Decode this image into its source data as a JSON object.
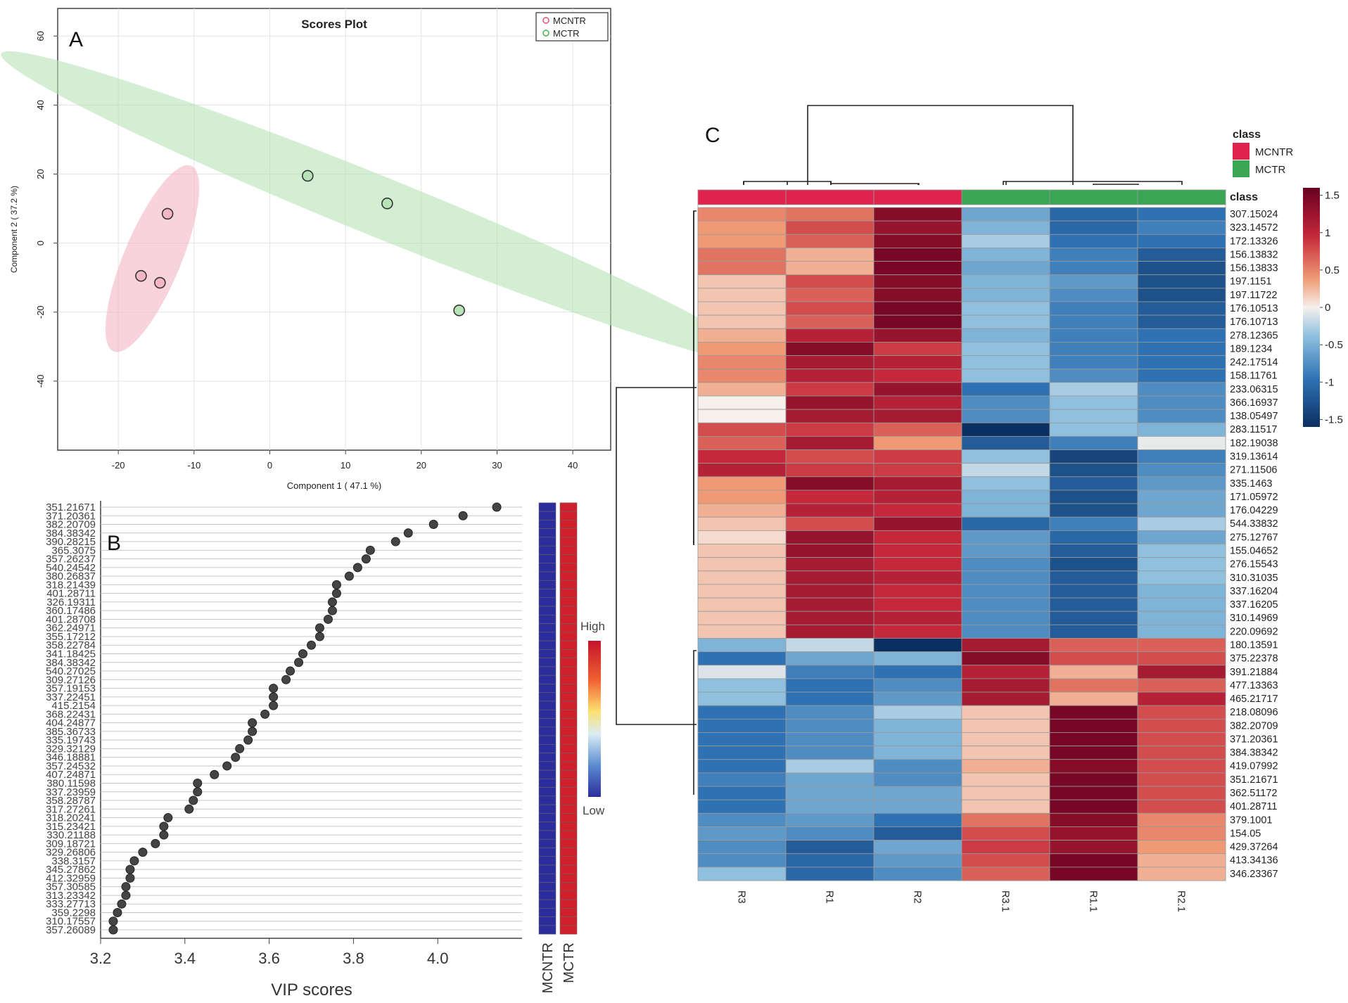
{
  "chart_data": [
    {
      "panel": "A",
      "type": "scatter",
      "title": "Scores Plot",
      "xlabel": "Component 1 ( 47.1 %)",
      "ylabel": "Component 2 ( 37.2 %)",
      "xlim": [
        -28,
        45
      ],
      "ylim": [
        -60,
        68
      ],
      "xticks": [
        -20,
        -10,
        0,
        10,
        20,
        30,
        40
      ],
      "yticks": [
        -40,
        -20,
        0,
        20,
        40,
        60
      ],
      "grid": true,
      "legend_position": "top-right",
      "series": [
        {
          "name": "MCNTR",
          "color": "#e8809a",
          "fill": "#f4b6c4",
          "points": [
            [
              -13.5,
              8.5
            ],
            [
              -17,
              -9.5
            ],
            [
              -14.5,
              -11.5
            ]
          ]
        },
        {
          "name": "MCTR",
          "color": "#5cbf63",
          "fill": "#b8e2b8",
          "points": [
            [
              5,
              19.5
            ],
            [
              15.5,
              11.5
            ],
            [
              25,
              -19.5
            ]
          ]
        }
      ],
      "ellipses": [
        {
          "series": "MCNTR",
          "cx": -15.5,
          "cy": -4.5,
          "rx": 27.5,
          "ry": 4.0,
          "angle_deg": 80
        },
        {
          "series": "MCTR",
          "cx": 14.5,
          "cy": 10.5,
          "rx": 67.0,
          "ry": 7.0,
          "angle_deg": -42
        }
      ]
    },
    {
      "panel": "B",
      "type": "scatter",
      "xlabel": "VIP scores",
      "xlim": [
        3.2,
        4.2
      ],
      "xticks": [
        "3.2",
        "3.4",
        "3.6",
        "3.8",
        "4.0"
      ],
      "labels": [
        "351.21671",
        "371.20361",
        "382.20709",
        "384.38342",
        "390.28215",
        "365.3075",
        "357.26237",
        "540.24542",
        "380.26837",
        "318.21439",
        "401.28711",
        "326.19311",
        "360.17486",
        "401.28708",
        "362.24971",
        "355.17212",
        "358.22784",
        "341.18425",
        "384.38342",
        "540.27025",
        "309.27126",
        "357.19153",
        "337.22451",
        "415.2154",
        "368.22431",
        "404.24877",
        "385.36733",
        "335.19743",
        "329.32129",
        "346.18881",
        "357.24532",
        "407.24871",
        "380.11598",
        "337.23959",
        "358.28787",
        "317.27261",
        "318.20241",
        "315.23421",
        "330.21188",
        "309.18721",
        "329.26806",
        "338.3157",
        "345.27862",
        "412.32959",
        "357.30585",
        "313.23342",
        "333.27713",
        "359.2298",
        "310.17557",
        "357.26089"
      ],
      "values": [
        4.14,
        4.06,
        3.99,
        3.93,
        3.9,
        3.84,
        3.83,
        3.81,
        3.79,
        3.76,
        3.76,
        3.75,
        3.75,
        3.74,
        3.72,
        3.72,
        3.7,
        3.68,
        3.67,
        3.65,
        3.64,
        3.61,
        3.61,
        3.61,
        3.59,
        3.56,
        3.56,
        3.55,
        3.53,
        3.52,
        3.5,
        3.47,
        3.43,
        3.43,
        3.42,
        3.41,
        3.36,
        3.35,
        3.35,
        3.33,
        3.3,
        3.28,
        3.27,
        3.27,
        3.26,
        3.26,
        3.25,
        3.24,
        3.23,
        3.23
      ],
      "heat_columns": [
        "MCNTR",
        "MCTR"
      ],
      "colorbar_labels": [
        "High",
        "Low"
      ],
      "high_color": "#d0202c",
      "low_color": "#2c2c9c"
    },
    {
      "panel": "C",
      "type": "heatmap",
      "columns": [
        "R3",
        "R1",
        "R2",
        "R3.1",
        "R1.1",
        "R2.1"
      ],
      "column_class": [
        "MCNTR",
        "MCNTR",
        "MCNTR",
        "MCTR",
        "MCTR",
        "MCTR"
      ],
      "class_header": "class",
      "legend_title": "class",
      "classes": [
        {
          "name": "MCNTR",
          "color": "#e0234c"
        },
        {
          "name": "MCTR",
          "color": "#3aa655"
        }
      ],
      "colorbar_ticks": [
        "1.5",
        "1",
        "0.5",
        "0",
        "-0.5",
        "-1",
        "-1.5"
      ],
      "colorbar_range": [
        -1.6,
        1.6
      ],
      "rows": [
        "307.15024",
        "323.14572",
        "172.13326",
        "156.13832",
        "156.13833",
        "197.1151",
        "197.11722",
        "176.10513",
        "176.10713",
        "278.12365",
        "189.1234",
        "242.17514",
        "158.11761",
        "233.06315",
        "366.16937",
        "138.05497",
        "283.11517",
        "182.19038",
        "319.13614",
        "271.11506",
        "335.1463",
        "171.05972",
        "176.04229",
        "544.33832",
        "275.12767",
        "155.04652",
        "276.15543",
        "310.31035",
        "337.16204",
        "337.16205",
        "310.14969",
        "220.09692",
        "180.13591",
        "375.22378",
        "391.21884",
        "477.13363",
        "465.21717",
        "218.08096",
        "382.20709",
        "371.20361",
        "384.38342",
        "419.07992",
        "351.21671",
        "362.51172",
        "401.28711",
        "379.1001",
        "154.05",
        "429.37264",
        "413.34136",
        "346.23367"
      ],
      "values": [
        [
          0.5,
          0.6,
          1.4,
          -0.6,
          -1.1,
          -1.0
        ],
        [
          0.4,
          0.8,
          1.3,
          -0.5,
          -1.1,
          -0.9
        ],
        [
          0.4,
          0.7,
          1.4,
          -0.3,
          -1.0,
          -1.0
        ],
        [
          0.6,
          0.3,
          1.5,
          -0.5,
          -0.9,
          -1.2
        ],
        [
          0.6,
          0.3,
          1.5,
          -0.6,
          -0.9,
          -1.3
        ],
        [
          0.2,
          0.8,
          1.4,
          -0.5,
          -0.7,
          -1.3
        ],
        [
          0.2,
          0.7,
          1.4,
          -0.5,
          -0.8,
          -1.3
        ],
        [
          0.2,
          0.8,
          1.5,
          -0.4,
          -0.9,
          -1.2
        ],
        [
          0.2,
          0.7,
          1.5,
          -0.4,
          -0.9,
          -1.2
        ],
        [
          0.3,
          1.1,
          1.3,
          -0.5,
          -0.9,
          -1.0
        ],
        [
          0.4,
          1.4,
          0.9,
          -0.4,
          -0.9,
          -1.0
        ],
        [
          0.5,
          1.2,
          1.1,
          -0.4,
          -0.9,
          -1.0
        ],
        [
          0.5,
          1.1,
          1.0,
          -0.4,
          -0.8,
          -1.0
        ],
        [
          0.3,
          0.9,
          1.3,
          -1.0,
          -0.3,
          -0.8
        ],
        [
          0.0,
          1.3,
          1.1,
          -0.8,
          -0.4,
          -0.8
        ],
        [
          0.0,
          1.2,
          1.2,
          -0.8,
          -0.4,
          -0.8
        ],
        [
          0.8,
          0.9,
          0.7,
          -1.6,
          -0.4,
          -0.5
        ],
        [
          0.7,
          1.2,
          0.4,
          -1.2,
          -0.9,
          -0.05
        ],
        [
          1.0,
          0.8,
          0.9,
          -0.4,
          -1.4,
          -0.9
        ],
        [
          1.1,
          0.9,
          0.9,
          -0.2,
          -1.3,
          -0.8
        ],
        [
          0.4,
          1.4,
          1.2,
          -0.4,
          -1.2,
          -0.7
        ],
        [
          0.4,
          1.0,
          1.1,
          -0.5,
          -1.3,
          -0.6
        ],
        [
          0.3,
          1.1,
          1.0,
          -0.5,
          -1.3,
          -0.6
        ],
        [
          0.2,
          0.8,
          1.3,
          -1.1,
          -0.9,
          -0.3
        ],
        [
          0.1,
          1.3,
          1.0,
          -0.7,
          -1.1,
          -0.6
        ],
        [
          0.2,
          1.3,
          1.0,
          -0.7,
          -1.2,
          -0.4
        ],
        [
          0.2,
          1.2,
          1.0,
          -0.8,
          -1.3,
          -0.4
        ],
        [
          0.2,
          1.2,
          1.1,
          -0.8,
          -1.2,
          -0.4
        ],
        [
          0.2,
          1.2,
          1.0,
          -0.8,
          -1.2,
          -0.5
        ],
        [
          0.2,
          1.2,
          1.0,
          -0.8,
          -1.2,
          -0.5
        ],
        [
          0.2,
          1.2,
          1.1,
          -0.8,
          -1.2,
          -0.5
        ],
        [
          0.2,
          1.2,
          1.0,
          -0.8,
          -1.2,
          -0.5
        ],
        [
          -0.5,
          -0.2,
          -1.6,
          1.2,
          0.7,
          0.7
        ],
        [
          -1.0,
          -0.6,
          -0.5,
          1.4,
          0.8,
          0.8
        ],
        [
          -0.1,
          -0.9,
          -1.0,
          1.1,
          0.3,
          1.2
        ],
        [
          -0.4,
          -1.0,
          -0.8,
          1.2,
          0.6,
          0.7
        ],
        [
          -0.4,
          -1.0,
          -0.7,
          1.2,
          0.3,
          1.1
        ],
        [
          -1.0,
          -0.8,
          -0.3,
          0.2,
          1.5,
          0.8
        ],
        [
          -1.0,
          -0.8,
          -0.5,
          0.2,
          1.5,
          0.8
        ],
        [
          -1.0,
          -0.8,
          -0.5,
          0.2,
          1.5,
          0.8
        ],
        [
          -1.0,
          -0.8,
          -0.5,
          0.2,
          1.5,
          0.8
        ],
        [
          -1.0,
          -0.3,
          -0.8,
          0.3,
          1.4,
          0.8
        ],
        [
          -0.9,
          -0.6,
          -0.8,
          0.2,
          1.5,
          0.8
        ],
        [
          -1.0,
          -0.6,
          -0.6,
          0.2,
          1.5,
          0.8
        ],
        [
          -1.0,
          -0.6,
          -0.6,
          0.2,
          1.5,
          0.8
        ],
        [
          -0.8,
          -0.7,
          -1.0,
          0.6,
          1.4,
          0.5
        ],
        [
          -0.7,
          -0.8,
          -1.2,
          0.8,
          1.3,
          0.5
        ],
        [
          -0.8,
          -1.2,
          -0.6,
          0.9,
          1.3,
          0.4
        ],
        [
          -0.8,
          -1.1,
          -0.7,
          0.8,
          1.5,
          0.3
        ],
        [
          -0.4,
          -1.1,
          -0.8,
          0.7,
          1.5,
          0.3
        ]
      ]
    }
  ],
  "panel_letters": {
    "a": "A",
    "b": "B",
    "c": "C"
  }
}
